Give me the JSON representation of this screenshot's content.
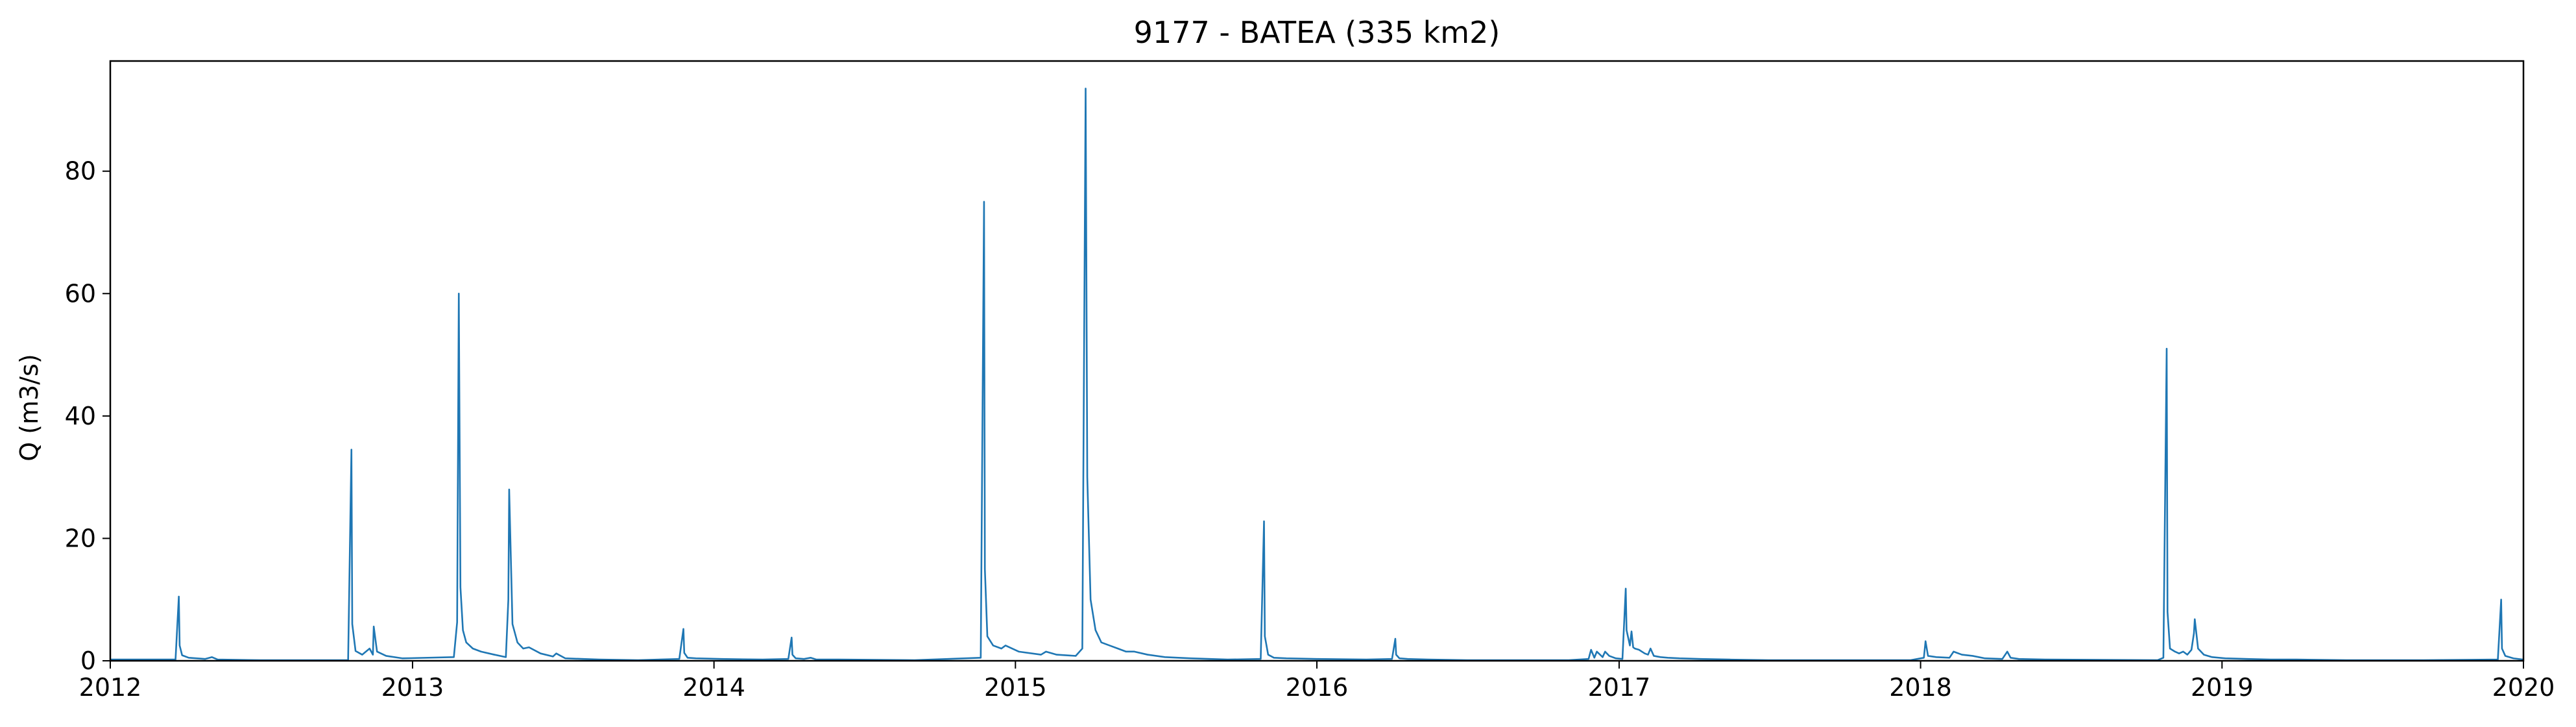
{
  "chart_data": {
    "type": "line",
    "title": "9177 - BATEA (335 km2)",
    "xlabel": "",
    "ylabel": "Q (m3/s)",
    "x_axis": {
      "type": "date",
      "range": [
        "2012-01-01",
        "2020-01-01"
      ],
      "ticks": [
        {
          "value": "2012-01-01",
          "label": "2012"
        },
        {
          "value": "2013-01-01",
          "label": "2013"
        },
        {
          "value": "2014-01-01",
          "label": "2014"
        },
        {
          "value": "2015-01-01",
          "label": "2015"
        },
        {
          "value": "2016-01-01",
          "label": "2016"
        },
        {
          "value": "2017-01-01",
          "label": "2017"
        },
        {
          "value": "2018-01-01",
          "label": "2018"
        },
        {
          "value": "2019-01-01",
          "label": "2019"
        },
        {
          "value": "2020-01-01",
          "label": "2020"
        }
      ]
    },
    "y_axis": {
      "range": [
        0,
        98
      ],
      "ticks": [
        {
          "value": 0,
          "label": "0"
        },
        {
          "value": 20,
          "label": "20"
        },
        {
          "value": 40,
          "label": "40"
        },
        {
          "value": 60,
          "label": "60"
        },
        {
          "value": 80,
          "label": "80"
        }
      ]
    },
    "grid": false,
    "legend": "none",
    "colors": {
      "line": "#1f77b4",
      "axis": "#000000"
    },
    "series": [
      {
        "x": [
          "2012-01-01",
          "2012-03-20",
          "2012-03-24",
          "2012-03-25",
          "2012-03-28",
          "2012-04-05",
          "2012-04-25",
          "2012-05-03",
          "2012-05-10",
          "2012-07-01",
          "2012-10-15",
          "2012-10-19",
          "2012-10-20",
          "2012-10-24",
          "2012-11-01",
          "2012-11-10",
          "2012-11-14",
          "2012-11-15",
          "2012-11-19",
          "2012-11-30",
          "2012-12-20",
          "2013-02-20",
          "2013-02-24",
          "2013-02-26",
          "2013-02-28",
          "2013-03-03",
          "2013-03-07",
          "2013-03-15",
          "2013-03-25",
          "2013-04-10",
          "2013-04-24",
          "2013-04-27",
          "2013-04-28",
          "2013-05-02",
          "2013-05-08",
          "2013-05-15",
          "2013-05-22",
          "2013-06-05",
          "2013-06-20",
          "2013-06-24",
          "2013-07-05",
          "2013-08-15",
          "2013-10-01",
          "2013-11-20",
          "2013-11-25",
          "2013-11-26",
          "2013-11-30",
          "2013-12-10",
          "2014-01-10",
          "2014-03-01",
          "2014-04-01",
          "2014-04-05",
          "2014-04-06",
          "2014-04-10",
          "2014-04-20",
          "2014-04-28",
          "2014-05-05",
          "2014-06-01",
          "2014-09-01",
          "2014-11-20",
          "2014-11-24",
          "2014-11-25",
          "2014-11-28",
          "2014-12-05",
          "2014-12-15",
          "2014-12-20",
          "2015-01-05",
          "2015-02-01",
          "2015-02-07",
          "2015-02-20",
          "2015-03-15",
          "2015-03-23",
          "2015-03-27",
          "2015-03-29",
          "2015-04-02",
          "2015-04-08",
          "2015-04-15",
          "2015-04-25",
          "2015-05-05",
          "2015-05-15",
          "2015-05-25",
          "2015-06-10",
          "2015-07-01",
          "2015-08-01",
          "2015-09-15",
          "2015-10-25",
          "2015-10-29",
          "2015-10-30",
          "2015-11-03",
          "2015-11-10",
          "2015-11-25",
          "2016-01-01",
          "2016-03-01",
          "2016-04-01",
          "2016-04-05",
          "2016-04-06",
          "2016-04-10",
          "2016-04-20",
          "2016-05-15",
          "2016-07-01",
          "2016-11-01",
          "2016-11-25",
          "2016-11-28",
          "2016-12-02",
          "2016-12-05",
          "2016-12-12",
          "2016-12-15",
          "2016-12-20",
          "2016-12-28",
          "2017-01-05",
          "2017-01-09",
          "2017-01-10",
          "2017-01-14",
          "2017-01-16",
          "2017-01-18",
          "2017-01-20",
          "2017-01-25",
          "2017-02-01",
          "2017-02-05",
          "2017-02-08",
          "2017-02-12",
          "2017-02-20",
          "2017-03-01",
          "2017-03-15",
          "2017-04-10",
          "2017-05-15",
          "2017-07-01",
          "2017-12-20",
          "2018-01-05",
          "2018-01-07",
          "2018-01-10",
          "2018-01-20",
          "2018-02-05",
          "2018-02-10",
          "2018-02-20",
          "2018-03-05",
          "2018-03-20",
          "2018-04-10",
          "2018-04-16",
          "2018-04-20",
          "2018-04-30",
          "2018-06-01",
          "2018-10-15",
          "2018-10-22",
          "2018-10-26",
          "2018-10-27",
          "2018-10-30",
          "2018-11-05",
          "2018-11-10",
          "2018-11-15",
          "2018-11-20",
          "2018-11-25",
          "2018-11-28",
          "2018-11-29",
          "2018-12-03",
          "2018-12-10",
          "2018-12-20",
          "2019-01-05",
          "2019-02-01",
          "2019-03-01",
          "2019-04-01",
          "2019-06-01",
          "2019-09-01",
          "2019-12-01",
          "2019-12-05",
          "2019-12-06",
          "2019-12-10",
          "2019-12-20",
          "2020-01-01"
        ],
        "y": [
          0.2,
          0.2,
          10.5,
          2.5,
          0.9,
          0.5,
          0.3,
          0.6,
          0.2,
          0.1,
          0.1,
          34.5,
          6.0,
          1.6,
          1.0,
          2.0,
          1.0,
          5.6,
          1.5,
          0.8,
          0.4,
          0.6,
          6.3,
          60.0,
          12.0,
          5.0,
          3.0,
          2.0,
          1.5,
          1.0,
          0.6,
          10.0,
          28.0,
          6.0,
          3.0,
          2.0,
          2.2,
          1.2,
          0.7,
          1.2,
          0.4,
          0.2,
          0.1,
          0.3,
          5.2,
          1.3,
          0.5,
          0.4,
          0.3,
          0.2,
          0.3,
          3.8,
          1.0,
          0.4,
          0.3,
          0.5,
          0.2,
          0.2,
          0.1,
          0.5,
          75.0,
          15.0,
          4.0,
          2.5,
          2.0,
          2.5,
          1.5,
          1.0,
          1.5,
          1.0,
          0.8,
          2.0,
          93.5,
          30.0,
          10.0,
          5.0,
          3.0,
          2.5,
          2.0,
          1.5,
          1.5,
          1.0,
          0.6,
          0.4,
          0.2,
          0.3,
          22.8,
          4.0,
          1.0,
          0.5,
          0.4,
          0.3,
          0.2,
          0.3,
          3.6,
          1.0,
          0.4,
          0.3,
          0.2,
          0.1,
          0.1,
          0.3,
          1.8,
          0.5,
          1.5,
          0.6,
          1.5,
          0.8,
          0.4,
          0.3,
          11.8,
          5.0,
          2.5,
          4.8,
          2.2,
          2.0,
          1.8,
          1.2,
          1.0,
          2.0,
          0.8,
          0.6,
          0.5,
          0.4,
          0.3,
          0.2,
          0.1,
          0.1,
          0.5,
          3.2,
          0.8,
          0.6,
          0.5,
          1.5,
          1.0,
          0.8,
          0.4,
          0.3,
          1.5,
          0.5,
          0.3,
          0.2,
          0.1,
          0.5,
          51.0,
          8.0,
          2.0,
          1.5,
          1.2,
          1.5,
          1.0,
          1.8,
          4.5,
          6.8,
          2.0,
          1.0,
          0.6,
          0.4,
          0.3,
          0.2,
          0.2,
          0.1,
          0.1,
          0.2,
          10.0,
          2.0,
          0.8,
          0.4,
          0.2
        ]
      }
    ]
  }
}
